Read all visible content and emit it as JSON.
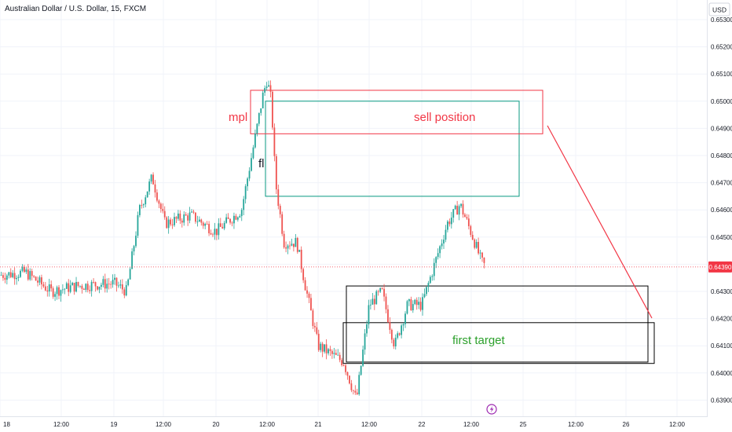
{
  "header": {
    "symbol_title": "Australian Dollar / U.S. Dollar, 15, FXCM"
  },
  "price_axis": {
    "currency": "USD",
    "ticks": [
      "0.65300",
      "0.65200",
      "0.65100",
      "0.65000",
      "0.64900",
      "0.64800",
      "0.64700",
      "0.64600",
      "0.64500",
      "0.64400",
      "0.64300",
      "0.64200",
      "0.64100",
      "0.64000",
      "0.63900"
    ],
    "last_price": "0.64390"
  },
  "time_axis": {
    "ticks": [
      "18",
      "12:00",
      "19",
      "12:00",
      "20",
      "12:00",
      "21",
      "12:00",
      "22",
      "12:00",
      "25",
      "12:00",
      "26",
      "12:00"
    ]
  },
  "annotations": {
    "mpl_label": "mpl",
    "fl_label": "fl",
    "sell_label": "sell position",
    "target_label": "first target"
  },
  "colors": {
    "up": "#26a69a",
    "down": "#ef5350",
    "grid": "#f0f3fa",
    "sell_box": "#f23645",
    "green_box": "#089981",
    "target_text": "#2ca02c",
    "last_price_bg": "#f23645",
    "event_marker": "#9c27b0"
  },
  "chart_data": {
    "type": "candlestick",
    "title": "Australian Dollar / U.S. Dollar, 15, FXCM",
    "ylim": [
      0.6385,
      0.6535
    ],
    "y_unit": "USD",
    "x_labels": [
      "18",
      "12:00",
      "19",
      "12:00",
      "20",
      "12:00",
      "21",
      "12:00",
      "22",
      "12:00",
      "25",
      "12:00",
      "26",
      "12:00"
    ],
    "close_path_approx": [
      {
        "t": "18 00:00",
        "close": 0.6436
      },
      {
        "t": "18 06:00",
        "close": 0.6437
      },
      {
        "t": "18 12:00",
        "close": 0.643
      },
      {
        "t": "18 18:00",
        "close": 0.6432
      },
      {
        "t": "19 00:00",
        "close": 0.6433
      },
      {
        "t": "19 03:00",
        "close": 0.643
      },
      {
        "t": "19 06:00",
        "close": 0.646
      },
      {
        "t": "19 09:00",
        "close": 0.6472
      },
      {
        "t": "19 12:00",
        "close": 0.6455
      },
      {
        "t": "19 18:00",
        "close": 0.6458
      },
      {
        "t": "20 00:00",
        "close": 0.6452
      },
      {
        "t": "20 06:00",
        "close": 0.646
      },
      {
        "t": "20 09:00",
        "close": 0.6485
      },
      {
        "t": "20 11:00",
        "close": 0.6502
      },
      {
        "t": "20 12:00",
        "close": 0.6508
      },
      {
        "t": "20 13:00",
        "close": 0.65
      },
      {
        "t": "20 14:00",
        "close": 0.647
      },
      {
        "t": "20 16:00",
        "close": 0.6448
      },
      {
        "t": "20 19:00",
        "close": 0.6448
      },
      {
        "t": "20 21:00",
        "close": 0.6432
      },
      {
        "t": "21 00:00",
        "close": 0.641
      },
      {
        "t": "21 06:00",
        "close": 0.6404
      },
      {
        "t": "21 09:00",
        "close": 0.639
      },
      {
        "t": "21 12:00",
        "close": 0.6425
      },
      {
        "t": "21 15:00",
        "close": 0.643
      },
      {
        "t": "21 18:00",
        "close": 0.641
      },
      {
        "t": "21 21:00",
        "close": 0.6425
      },
      {
        "t": "22 00:00",
        "close": 0.6425
      },
      {
        "t": "22 03:00",
        "close": 0.644
      },
      {
        "t": "22 06:00",
        "close": 0.6455
      },
      {
        "t": "22 09:00",
        "close": 0.6462
      },
      {
        "t": "22 12:00",
        "close": 0.645
      },
      {
        "t": "22 14:00",
        "close": 0.6441
      },
      {
        "t": "22 15:00",
        "close": 0.6439
      }
    ],
    "zones": [
      {
        "name": "sell position",
        "y_low": 0.6488,
        "y_high": 0.6504
      },
      {
        "name": "green zone",
        "y_low": 0.6465,
        "y_high": 0.65
      },
      {
        "name": "first target",
        "y_low": 0.6404,
        "y_high": 0.6432
      }
    ],
    "grid": true,
    "legend": "none"
  }
}
